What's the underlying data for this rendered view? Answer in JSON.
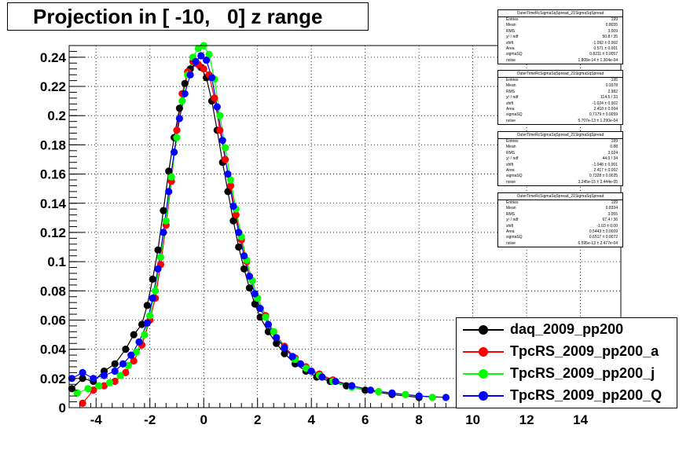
{
  "title": "Projection in [ -10,   0] z range",
  "stat_boxes": [
    {
      "name": "OuterTimeRcSigmaSqSpread_21SigmaSqSpread",
      "rows": [
        [
          "Entries",
          "199"
        ],
        [
          "Mean",
          "0.8035"
        ],
        [
          "RMS",
          "3.009"
        ],
        [
          "χ² / ndf",
          "50.8 / 35"
        ],
        [
          "shift",
          "-1.092 ± 0.002"
        ],
        [
          "Area",
          "0.571 ± 0.001"
        ],
        [
          "sigmaSQ",
          "0.8211 ± 0.0057"
        ],
        [
          "noise",
          "1.808e-14 ± 1.304e-04"
        ]
      ]
    },
    {
      "name": "OuterTimeRcSigmaSqSpread_21SigmaSqSpread",
      "rows": [
        [
          "Entries",
          "195"
        ],
        [
          "Mean",
          "0.9378"
        ],
        [
          "RMS",
          "2.982"
        ],
        [
          "χ² / ndf",
          "114.5 / 33"
        ],
        [
          "shift",
          "-1.024 ± 0.002"
        ],
        [
          "Area",
          "2.418 ± 0.004"
        ],
        [
          "sigmaSQ",
          "0.7179 ± 0.0059"
        ],
        [
          "noise",
          "5.707e-13 ± 1.290e-04"
        ]
      ]
    },
    {
      "name": "OuterTimeRcSigmaSqSpread_21SigmaSqSpread",
      "rows": [
        [
          "Entries",
          "199"
        ],
        [
          "Mean",
          "0.88"
        ],
        [
          "RMS",
          "3.024"
        ],
        [
          "χ² / ndf",
          "44.0 / 34"
        ],
        [
          "shift",
          "-1.048 ± 0.001"
        ],
        [
          "Area",
          "2.417 ± 0.002"
        ],
        [
          "sigmaSQ",
          "0.7328 ± 0.0025"
        ],
        [
          "noise",
          "3.245e-15 ± 2.444e-05"
        ]
      ]
    },
    {
      "name": "OuterTimeRcSigmaSqSpread_21SigmaSqSpread",
      "rows": [
        [
          "Entries",
          "199"
        ],
        [
          "Mean",
          "0.8334"
        ],
        [
          "RMS",
          "3.055"
        ],
        [
          "χ² / ndf",
          "67.4 / 36"
        ],
        [
          "shift",
          "-1.03 ± 0.00"
        ],
        [
          "Area",
          "0.5443 ± 0.0009"
        ],
        [
          "sigmaSQ",
          "0.6517 ± 0.0072"
        ],
        [
          "noise",
          "6.595e-13 ± 2.477e-04"
        ]
      ]
    }
  ],
  "legend": [
    {
      "label": "daq_2009_pp200",
      "color": "#000000"
    },
    {
      "label": "TpcRS_2009_pp200_a",
      "color": "#ff0000"
    },
    {
      "label": "TpcRS_2009_pp200_j",
      "color": "#00ff00"
    },
    {
      "label": "TpcRS_2009_pp200_Q",
      "color": "#0000ff"
    }
  ],
  "chart_data": {
    "type": "scatter",
    "title": "Projection in [ -10,   0] z range",
    "xlabel": "",
    "ylabel": "",
    "xlim": [
      -5,
      15.5
    ],
    "ylim": [
      0,
      0.248
    ],
    "grid": true,
    "x_ticks": [
      -4,
      -2,
      0,
      2,
      4,
      6,
      8,
      10,
      12,
      14
    ],
    "x_tick_labels": [
      "-4",
      "-2",
      "0",
      "2",
      "4",
      "6",
      "8",
      "10",
      "12",
      "14"
    ],
    "y_ticks": [
      0,
      0.02,
      0.04,
      0.06,
      0.08,
      0.1,
      0.12,
      0.14,
      0.16,
      0.18,
      0.2,
      0.22,
      0.24
    ],
    "y_tick_labels": [
      "0",
      "0.02",
      "0.04",
      "0.06",
      "0.08",
      "0.1",
      "0.12",
      "0.14",
      "0.16",
      "0.18",
      "0.2",
      "0.22",
      "0.24"
    ],
    "series": [
      {
        "name": "daq_2009_pp200",
        "color": "#000000",
        "x": [
          -4.9,
          -4.5,
          -4.1,
          -3.7,
          -3.3,
          -2.9,
          -2.6,
          -2.3,
          -2.1,
          -1.9,
          -1.7,
          -1.5,
          -1.3,
          -1.1,
          -0.9,
          -0.7,
          -0.5,
          -0.3,
          -0.1,
          0.1,
          0.3,
          0.5,
          0.7,
          0.9,
          1.1,
          1.3,
          1.5,
          1.7,
          1.9,
          2.1,
          2.4,
          2.7,
          3.0,
          3.4,
          3.8,
          4.2,
          4.7,
          5.3,
          6.0,
          7.0,
          8.0
        ],
        "y": [
          0.013,
          0.02,
          0.018,
          0.025,
          0.03,
          0.04,
          0.05,
          0.057,
          0.07,
          0.088,
          0.108,
          0.135,
          0.162,
          0.185,
          0.205,
          0.222,
          0.232,
          0.236,
          0.233,
          0.226,
          0.21,
          0.19,
          0.168,
          0.148,
          0.128,
          0.11,
          0.095,
          0.082,
          0.071,
          0.062,
          0.052,
          0.044,
          0.037,
          0.03,
          0.025,
          0.021,
          0.018,
          0.015,
          0.012,
          0.009,
          0.007
        ]
      },
      {
        "name": "TpcRS_2009_pp200_a",
        "color": "#ff0000",
        "x": [
          -4.5,
          -4.1,
          -3.7,
          -3.3,
          -2.9,
          -2.6,
          -2.3,
          -2.0,
          -1.8,
          -1.6,
          -1.4,
          -1.2,
          -1.0,
          -0.8,
          -0.6,
          -0.4,
          -0.2,
          0.0,
          0.2,
          0.4,
          0.6,
          0.8,
          1.0,
          1.2,
          1.4,
          1.6,
          1.8,
          2.0,
          2.3,
          2.6,
          3.0,
          3.4,
          3.8,
          4.3,
          4.8,
          5.5,
          6.5,
          7.5,
          8.5
        ],
        "y": [
          0.003,
          0.012,
          0.015,
          0.018,
          0.024,
          0.032,
          0.043,
          0.06,
          0.075,
          0.098,
          0.125,
          0.155,
          0.19,
          0.215,
          0.23,
          0.237,
          0.235,
          0.232,
          0.228,
          0.212,
          0.19,
          0.17,
          0.152,
          0.132,
          0.115,
          0.1,
          0.087,
          0.075,
          0.063,
          0.052,
          0.042,
          0.034,
          0.028,
          0.023,
          0.019,
          0.015,
          0.011,
          0.009,
          0.007
        ]
      },
      {
        "name": "TpcRS_2009_pp200_j",
        "color": "#00ff00",
        "x": [
          -4.7,
          -4.3,
          -3.9,
          -3.5,
          -3.1,
          -2.8,
          -2.5,
          -2.2,
          -2.0,
          -1.8,
          -1.6,
          -1.4,
          -1.2,
          -1.0,
          -0.8,
          -0.6,
          -0.4,
          -0.2,
          0.0,
          0.2,
          0.4,
          0.6,
          0.8,
          1.0,
          1.2,
          1.4,
          1.6,
          1.8,
          2.0,
          2.3,
          2.6,
          3.0,
          3.4,
          3.8,
          4.3,
          4.8,
          5.5,
          6.5,
          7.5,
          8.5
        ],
        "y": [
          0.01,
          0.013,
          0.015,
          0.017,
          0.022,
          0.029,
          0.038,
          0.05,
          0.063,
          0.08,
          0.103,
          0.128,
          0.158,
          0.185,
          0.21,
          0.228,
          0.24,
          0.246,
          0.248,
          0.242,
          0.225,
          0.2,
          0.178,
          0.156,
          0.136,
          0.117,
          0.101,
          0.087,
          0.075,
          0.062,
          0.052,
          0.041,
          0.033,
          0.027,
          0.022,
          0.018,
          0.014,
          0.011,
          0.009,
          0.007
        ]
      },
      {
        "name": "TpcRS_2009_pp200_Q",
        "color": "#0000ff",
        "x": [
          -4.9,
          -4.5,
          -4.1,
          -3.7,
          -3.3,
          -3.0,
          -2.7,
          -2.4,
          -2.1,
          -1.9,
          -1.7,
          -1.5,
          -1.3,
          -1.1,
          -0.9,
          -0.7,
          -0.5,
          -0.3,
          -0.1,
          0.1,
          0.3,
          0.5,
          0.7,
          0.9,
          1.1,
          1.3,
          1.5,
          1.7,
          1.9,
          2.1,
          2.4,
          2.7,
          3.0,
          3.3,
          3.6,
          4.0,
          4.4,
          4.9,
          5.5,
          6.2,
          7.0,
          8.0,
          9.0
        ],
        "y": [
          0.02,
          0.024,
          0.02,
          0.022,
          0.025,
          0.03,
          0.036,
          0.045,
          0.058,
          0.075,
          0.095,
          0.12,
          0.148,
          0.175,
          0.198,
          0.215,
          0.228,
          0.237,
          0.241,
          0.238,
          0.226,
          0.206,
          0.183,
          0.16,
          0.138,
          0.12,
          0.104,
          0.09,
          0.078,
          0.068,
          0.057,
          0.048,
          0.041,
          0.035,
          0.03,
          0.025,
          0.021,
          0.018,
          0.015,
          0.012,
          0.01,
          0.008,
          0.007
        ]
      }
    ]
  }
}
